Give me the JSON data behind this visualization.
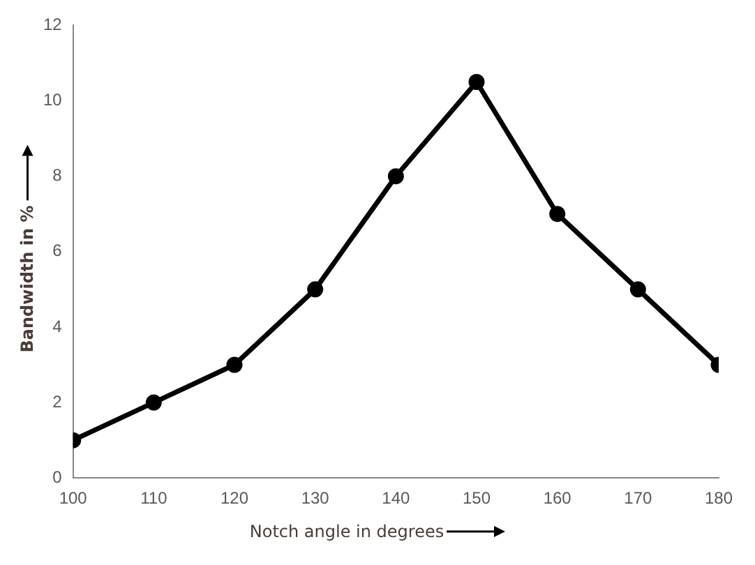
{
  "chart_data": {
    "type": "line",
    "xlabel": "Notch angle in degrees",
    "ylabel": "Bandwidth  in %",
    "x": [
      100,
      110,
      120,
      130,
      140,
      150,
      160,
      170,
      180
    ],
    "series": [
      {
        "color": "#000000",
        "values": [
          1,
          2,
          3,
          5,
          8,
          10.5,
          7,
          5,
          3
        ]
      }
    ],
    "xlim": [
      100,
      180
    ],
    "xticks": [
      100,
      110,
      120,
      130,
      140,
      150,
      160,
      170,
      180
    ],
    "ylim": [
      0,
      12
    ],
    "yticks": [
      0,
      2,
      4,
      6,
      8,
      10,
      12
    ],
    "grid": false,
    "legend": false,
    "marker": "circle",
    "line_style": "solid"
  }
}
